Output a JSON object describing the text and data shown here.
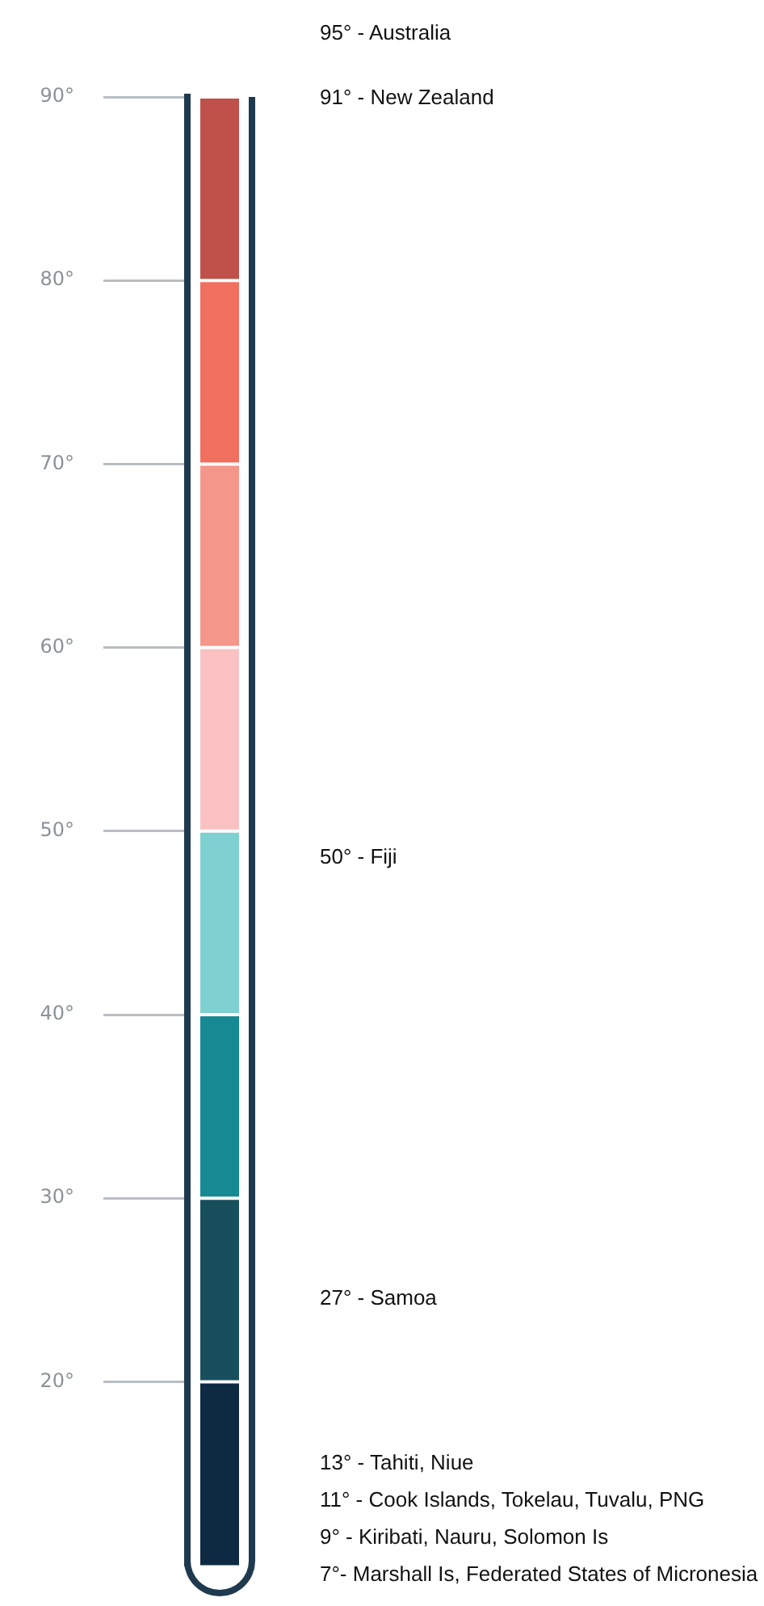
{
  "chart_data": {
    "type": "bar",
    "stacked": true,
    "categories": [
      null
    ],
    "ylim": [
      10,
      90
    ],
    "yticks": [
      {
        "value": 20,
        "label": "20°"
      },
      {
        "value": 30,
        "label": "30°"
      },
      {
        "value": 40,
        "label": "40°"
      },
      {
        "value": 50,
        "label": "50°"
      },
      {
        "value": 60,
        "label": "60°"
      },
      {
        "value": 70,
        "label": "70°"
      },
      {
        "value": 80,
        "label": "80°"
      },
      {
        "value": 90,
        "label": "90°"
      }
    ],
    "series": [
      {
        "color": "#0e2a42",
        "values": [
          20
        ]
      },
      {
        "color": "#174f5d",
        "values": [
          10
        ]
      },
      {
        "color": "#168993",
        "values": [
          10
        ]
      },
      {
        "color": "#7fd0d0",
        "values": [
          10
        ]
      },
      {
        "color": "#f9c1c1",
        "values": [
          10
        ]
      },
      {
        "color": "#f4968a",
        "values": [
          10
        ]
      },
      {
        "color": "#f06f5f",
        "values": [
          10
        ]
      },
      {
        "color": "#c0504a",
        "values": [
          10
        ]
      }
    ],
    "annotations": [
      "95° - Australia",
      "91° - New Zealand",
      "50° - Fiji",
      "27° - Samoa",
      "13° - Tahiti, Niue",
      "11° - Cook Islands, Tokelau, Tuvalu, PNG",
      "9° - Kiribati, Nauru, Solomon Is",
      "7°- Marshall Is, Federated States of Micronesia"
    ]
  }
}
